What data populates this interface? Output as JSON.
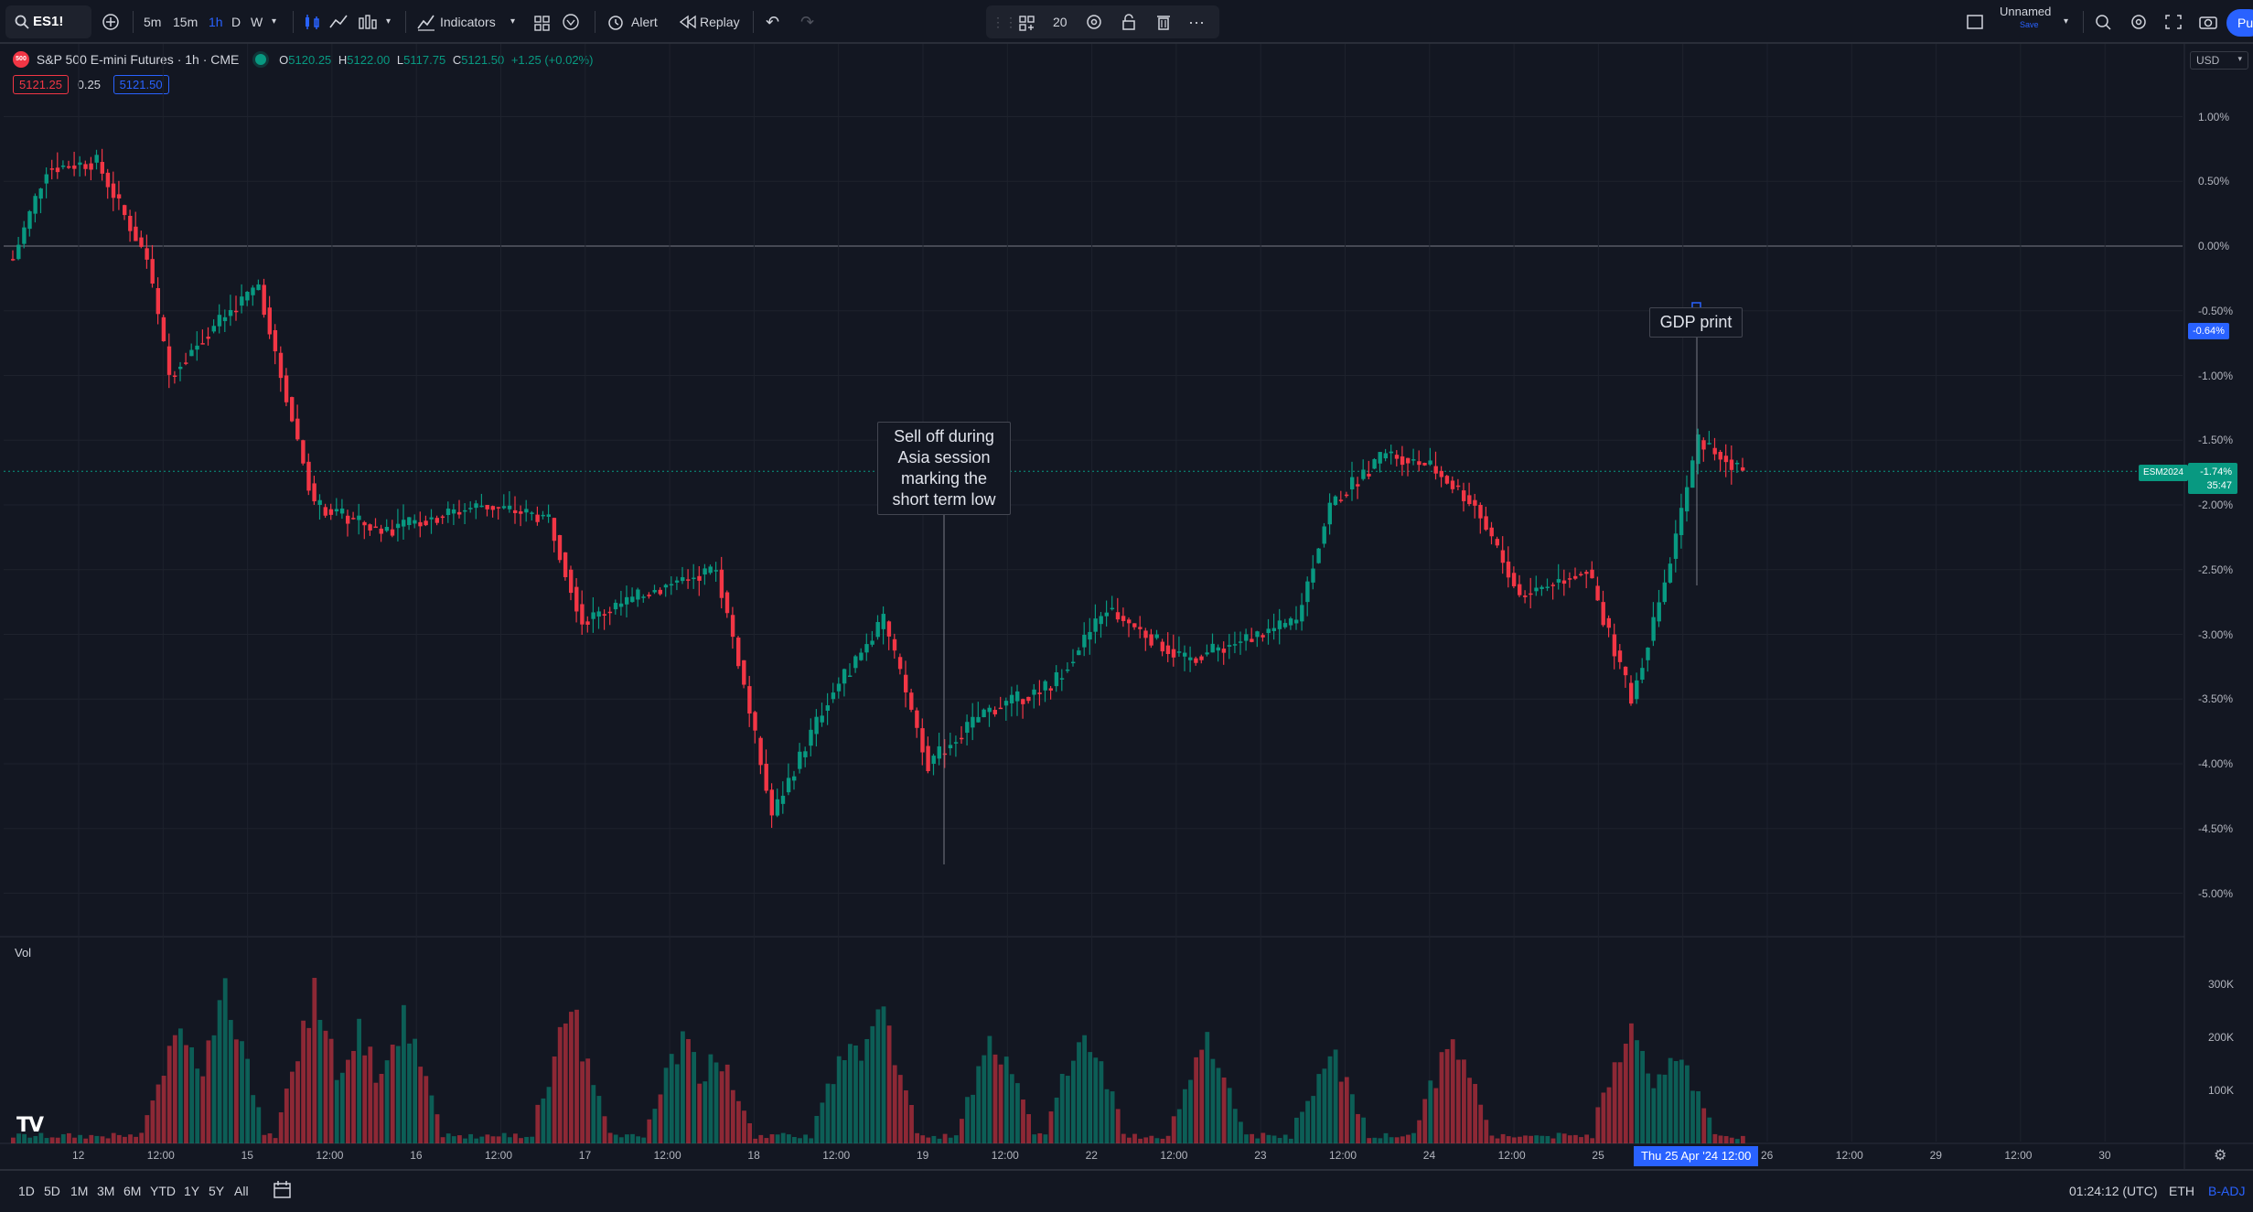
{
  "toolbar": {
    "symbol": "ES1!",
    "intervals": [
      "5m",
      "15m",
      "1h",
      "D",
      "W"
    ],
    "active_interval": "1h",
    "indicators_label": "Indicators",
    "alert_label": "Alert",
    "replay_label": "Replay",
    "float_count": "20",
    "layout_name": "Unnamed",
    "layout_sub": "Save",
    "publish_label": "Pu"
  },
  "legend": {
    "logo_text": "500",
    "title": "S&P 500 E-mini Futures · 1h · CME",
    "o_label": "O",
    "o": "5120.25",
    "h_label": "H",
    "h": "5122.00",
    "l_label": "L",
    "l": "5117.75",
    "c_label": "C",
    "c": "5121.50",
    "change": "+1.25 (+0.02%)",
    "bid": "5121.25",
    "spread": "0.25",
    "ask": "5121.50"
  },
  "currency": "USD",
  "price_axis": [
    "1.00%",
    "0.50%",
    "0.00%",
    "-0.50%",
    "-1.00%",
    "-1.50%",
    "-2.00%",
    "-2.50%",
    "-3.00%",
    "-3.50%",
    "-4.00%",
    "-4.50%",
    "-5.00%"
  ],
  "price_badges": {
    "crosshair_value": "-0.64%",
    "symbol_tag": "ESM2024",
    "last_value": "-1.74%",
    "countdown": "35:47"
  },
  "volume_axis": [
    "300K",
    "200K",
    "100K"
  ],
  "volume_label": "Vol",
  "time_axis": [
    "12",
    "12:00",
    "15",
    "12:00",
    "16",
    "12:00",
    "17",
    "12:00",
    "18",
    "12:00",
    "19",
    "12:00",
    "22",
    "12:00",
    "23",
    "12:00",
    "24",
    "12:00",
    "25",
    "12:00",
    "26",
    "12:00",
    "29",
    "12:00",
    "30"
  ],
  "time_highlight": "Thu 25 Apr '24   12:00",
  "annotations": {
    "sell_off": [
      "Sell off during",
      "Asia session",
      "marking the",
      "short term low"
    ],
    "gdp": "GDP print"
  },
  "bottom": {
    "ranges": [
      "1D",
      "5D",
      "1M",
      "3M",
      "6M",
      "YTD",
      "1Y",
      "5Y",
      "All"
    ],
    "clock": "01:24:12 (UTC)",
    "session": "ETH",
    "adj": "B-ADJ"
  },
  "colors": {
    "bg": "#131722",
    "up": "#089981",
    "down": "#f23645",
    "accent": "#2962ff",
    "grid": "#1e222d"
  },
  "chart_data": {
    "type": "candlestick",
    "y_unit": "% change",
    "ylim": [
      -5.5,
      1.3
    ],
    "zero_line": 0,
    "close_path_pct": [
      [
        0,
        -0.1
      ],
      [
        6,
        0.6
      ],
      [
        15,
        0.65
      ],
      [
        24,
        -0.1
      ],
      [
        28,
        -1.0
      ],
      [
        34,
        -0.7
      ],
      [
        44,
        -0.3
      ],
      [
        48,
        -1.0
      ],
      [
        54,
        -2.0
      ],
      [
        66,
        -2.2
      ],
      [
        84,
        -2.0
      ],
      [
        96,
        -2.1
      ],
      [
        102,
        -2.9
      ],
      [
        118,
        -2.6
      ],
      [
        126,
        -2.5
      ],
      [
        130,
        -3.2
      ],
      [
        136,
        -4.4
      ],
      [
        146,
        -3.5
      ],
      [
        156,
        -2.9
      ],
      [
        164,
        -4.0
      ],
      [
        174,
        -3.6
      ],
      [
        186,
        -3.4
      ],
      [
        196,
        -2.8
      ],
      [
        210,
        -3.2
      ],
      [
        230,
        -2.9
      ],
      [
        236,
        -2.0
      ],
      [
        246,
        -1.6
      ],
      [
        254,
        -1.7
      ],
      [
        262,
        -2.0
      ],
      [
        270,
        -2.7
      ],
      [
        282,
        -2.5
      ],
      [
        290,
        -3.5
      ],
      [
        296,
        -2.6
      ],
      [
        302,
        -1.5
      ],
      [
        310,
        -1.74
      ]
    ],
    "volume_unit": "contracts",
    "volume_peaks": [
      {
        "session": "15",
        "value": 280000
      },
      {
        "session": "16",
        "value": 320000
      },
      {
        "session": "18",
        "value": 300000
      },
      {
        "session": "19",
        "value": 220000
      },
      {
        "session": "22",
        "value": 345000
      },
      {
        "session": "23",
        "value": 290000
      },
      {
        "session": "24",
        "value": 270000
      },
      {
        "session": "25",
        "value": 200000
      },
      {
        "session": "26",
        "value": 300000
      }
    ]
  }
}
